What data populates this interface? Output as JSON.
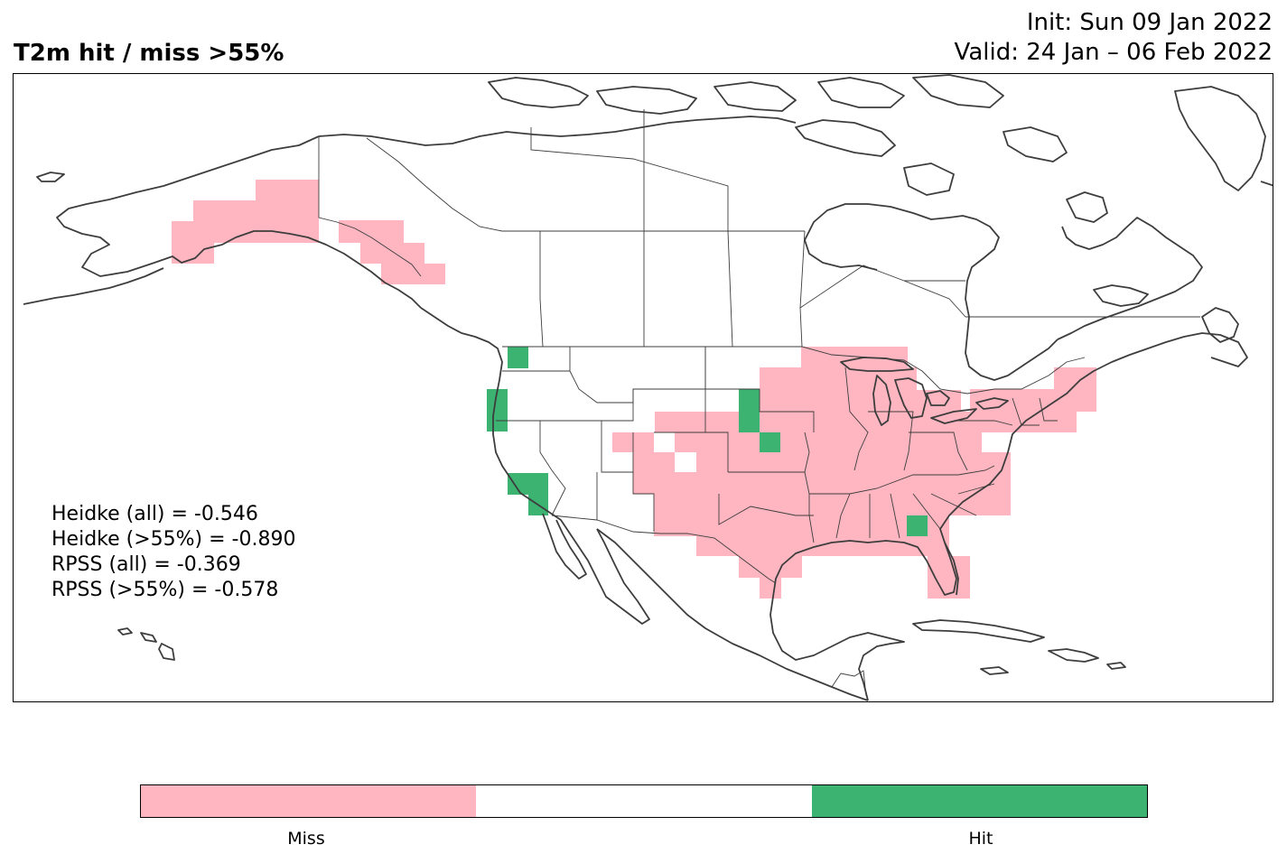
{
  "title": "T2m hit / miss  >55%",
  "init": "Init: Sun 09 Jan 2022",
  "valid": "Valid: 24 Jan – 06 Feb 2022",
  "stats": [
    "Heidke (all) = -0.546",
    "Heidke (>55%) = -0.890",
    "RPSS (all) = -0.369",
    "RPSS (>55%) = -0.578"
  ],
  "legend": {
    "miss_label": "Miss",
    "hit_label": "Hit",
    "miss_color": "#ffb6c1",
    "neutral_color": "#ffffff",
    "hit_color": "#3cb371"
  }
}
